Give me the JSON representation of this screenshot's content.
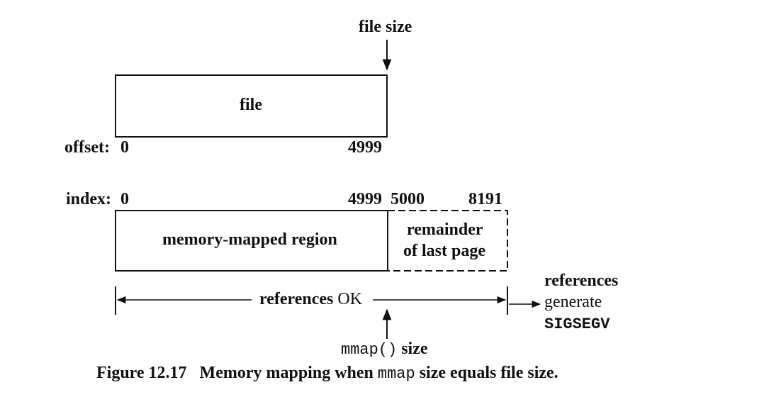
{
  "file_size_label": "file size",
  "file_box_label": "file",
  "offset_label": "offset:",
  "offset_start": "0",
  "offset_end": "4999",
  "index_label": "index:",
  "index_start": "0",
  "index_4999": "4999",
  "index_5000": "5000",
  "index_8191": "8191",
  "region_label": "memory-mapped region",
  "remainder_line1": "remainder",
  "remainder_line2": "of last page",
  "references_ok_word": "references",
  "references_ok_status": "OK",
  "sigsegv_line1": "references",
  "sigsegv_line2": "generate",
  "sigsegv_signal": "SIGSEGV",
  "mmap_call": "mmap()",
  "mmap_size_word": "size",
  "caption": {
    "number": "Figure 12.17",
    "text_before": "Memory mapping when",
    "code": "mmap",
    "text_after": "size equals file size."
  }
}
